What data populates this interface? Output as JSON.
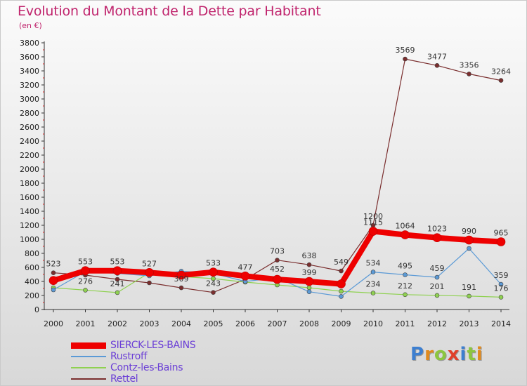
{
  "title": "Evolution du Montant de la Dette par Habitant",
  "subtitle": "(en €)",
  "brand": "Proxiti",
  "chart_data": {
    "type": "line",
    "categories": [
      "2000",
      "2001",
      "2002",
      "2003",
      "2004",
      "2005",
      "2006",
      "2007",
      "2008",
      "2009",
      "2010",
      "2011",
      "2012",
      "2013",
      "2014"
    ],
    "ylim": [
      0,
      3800
    ],
    "yticks": [
      0,
      200,
      400,
      600,
      800,
      1000,
      1200,
      1400,
      1600,
      1800,
      2000,
      2200,
      2400,
      2600,
      2800,
      3000,
      3200,
      3400,
      3600,
      3800
    ],
    "grid": false,
    "legend_position": "bottom-left",
    "series": [
      {
        "name": "Rettel",
        "color": "#7a2e2e",
        "width": 1.2,
        "marker": 3,
        "values": [
          523,
          490,
          430,
          380,
          309,
          243,
          430,
          703,
          638,
          549,
          1200,
          3569,
          3477,
          3356,
          3264
        ],
        "labels": [
          "523",
          "",
          "",
          "",
          "309",
          "243",
          "",
          "703",
          "638",
          "549",
          "1200",
          "3569",
          "3477",
          "3356",
          "3264"
        ]
      },
      {
        "name": "Contz-les-Bains",
        "color": "#8fd151",
        "width": 1.2,
        "marker": 3,
        "values": [
          310,
          276,
          241,
          525,
          470,
          440,
          390,
          350,
          310,
          260,
          234,
          212,
          201,
          191,
          176
        ],
        "labels": [
          "",
          "276",
          "241",
          "",
          "",
          "",
          "",
          "",
          "",
          "",
          "234",
          "212",
          "201",
          "191",
          "176"
        ]
      },
      {
        "name": "Rustroff",
        "color": "#5b9ad6",
        "width": 1.2,
        "marker": 3,
        "values": [
          280,
          541,
          514,
          480,
          546,
          513,
          400,
          452,
          253,
          186,
          534,
          495,
          459,
          870,
          359
        ],
        "labels": [
          "",
          "",
          "",
          "",
          "",
          "",
          "",
          "452",
          "",
          "",
          "534",
          "495",
          "459",
          "",
          "359"
        ]
      },
      {
        "name": "SIERCK-LES-BAINS",
        "color": "#ee0000",
        "width": 8,
        "marker": 6,
        "values": [
          413,
          553,
          553,
          527,
          489,
          533,
          477,
          429,
          399,
          364,
          1115,
          1064,
          1023,
          990,
          965
        ],
        "labels": [
          "",
          "553",
          "553",
          "527",
          "",
          "533",
          "477",
          "",
          "399",
          "",
          "1115",
          "1064",
          "1023",
          "990",
          "965"
        ]
      }
    ]
  }
}
